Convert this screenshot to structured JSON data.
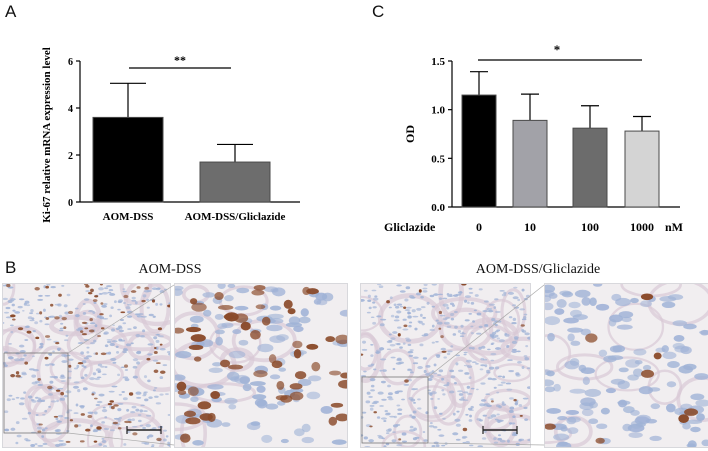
{
  "panels": {
    "a": {
      "letter": "A"
    },
    "b": {
      "letter": "B"
    },
    "c": {
      "letter": "C"
    }
  },
  "chart_data": [
    {
      "type": "bar",
      "ylabel": "Ki-67 relative mRNA expression level",
      "categories": [
        "AOM-DSS",
        "AOM-DSS/Gliclazide"
      ],
      "values": [
        3.6,
        1.7
      ],
      "errors": [
        1.45,
        0.75
      ],
      "ylim": [
        0,
        6
      ],
      "yticks": [
        "0",
        "2",
        "4",
        "6"
      ],
      "bar_colors": [
        "#000000",
        "#6d6d6d"
      ],
      "significance": "**"
    },
    {
      "type": "bar",
      "ylabel": "OD",
      "xlabel": "Gliclazide",
      "xunit": "nM",
      "categories": [
        "0",
        "10",
        "100",
        "1000"
      ],
      "values": [
        1.15,
        0.89,
        0.81,
        0.78
      ],
      "errors": [
        0.24,
        0.27,
        0.23,
        0.15
      ],
      "ylim": [
        0,
        1.5
      ],
      "yticks": [
        "0.0",
        "0.5",
        "1.0",
        "1.5"
      ],
      "bar_colors": [
        "#000000",
        "#a2a2a8",
        "#6c6c6c",
        "#d4d4d4"
      ],
      "significance": "*"
    }
  ],
  "micrographs": {
    "left_title": "AOM-DSS",
    "right_title": "AOM-DSS/Gliclazide"
  },
  "colors": {
    "tissue_bg": "#f1eef0",
    "nuclei_blue": "#9fb2d6",
    "ki67_brown": "#8a4a2a"
  }
}
